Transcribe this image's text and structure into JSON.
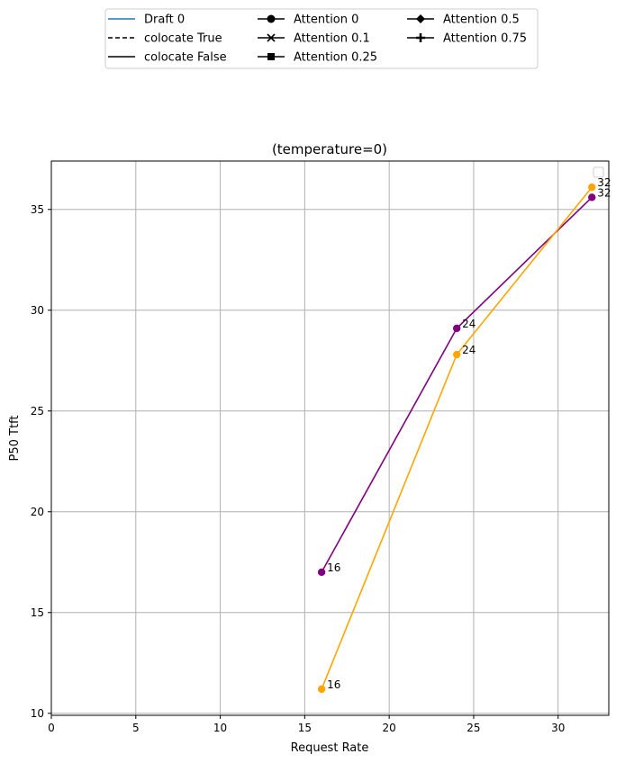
{
  "chart_data": {
    "type": "line",
    "title": "(temperature=0)",
    "xlabel": "Request Rate",
    "ylabel": "P50 Ttft",
    "xlim": [
      0,
      33
    ],
    "ylim": [
      9.9,
      37.4
    ],
    "xticks": [
      0,
      5,
      10,
      15,
      20,
      25,
      30
    ],
    "yticks": [
      10,
      15,
      20,
      25,
      30,
      35
    ],
    "grid": true,
    "legend": {
      "placement": "top-center",
      "entries": [
        {
          "label": "Draft 0",
          "style": "solid",
          "marker": "none",
          "color": "#1f77b4"
        },
        {
          "label": "colocate True",
          "style": "dashed",
          "marker": "none",
          "color": "#000000"
        },
        {
          "label": "colocate False",
          "style": "solid",
          "marker": "none",
          "color": "#000000"
        },
        {
          "label": "Attention 0",
          "style": "solid",
          "marker": "circle",
          "color": "#000000"
        },
        {
          "label": "Attention 0.1",
          "style": "solid",
          "marker": "x",
          "color": "#000000"
        },
        {
          "label": "Attention 0.25",
          "style": "solid",
          "marker": "square",
          "color": "#000000"
        },
        {
          "label": "Attention 0.5",
          "style": "solid",
          "marker": "diamond",
          "color": "#000000"
        },
        {
          "label": "Attention 0.75",
          "style": "solid",
          "marker": "plus",
          "color": "#000000"
        }
      ]
    },
    "series": [
      {
        "color": "#800080",
        "marker": "circle",
        "points": [
          {
            "x": 16,
            "y": 17.0,
            "label": "16"
          },
          {
            "x": 24,
            "y": 29.1,
            "label": "24"
          },
          {
            "x": 32,
            "y": 35.6,
            "label": "32"
          }
        ]
      },
      {
        "color": "#ffa500",
        "marker": "circle",
        "points": [
          {
            "x": 16,
            "y": 11.2,
            "label": "16"
          },
          {
            "x": 24,
            "y": 27.8,
            "label": "24"
          },
          {
            "x": 32,
            "y": 36.1,
            "label": "32"
          }
        ]
      }
    ]
  }
}
